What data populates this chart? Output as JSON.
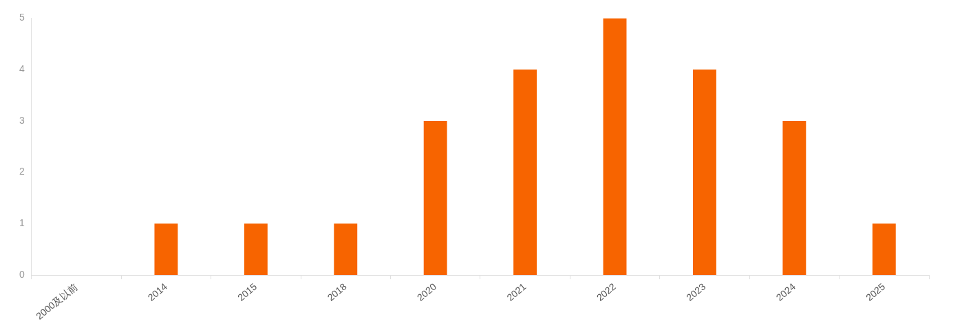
{
  "chart_data": {
    "type": "bar",
    "categories": [
      "2000及以前",
      "2014",
      "2015",
      "2018",
      "2020",
      "2021",
      "2022",
      "2023",
      "2024",
      "2025"
    ],
    "values": [
      0,
      1,
      1,
      1,
      3,
      4,
      5,
      4,
      3,
      1
    ],
    "color": "#f76400",
    "ylim": [
      0,
      5
    ],
    "yticks": [
      0,
      1,
      2,
      3,
      4,
      5
    ],
    "grid": false,
    "legend": false
  }
}
